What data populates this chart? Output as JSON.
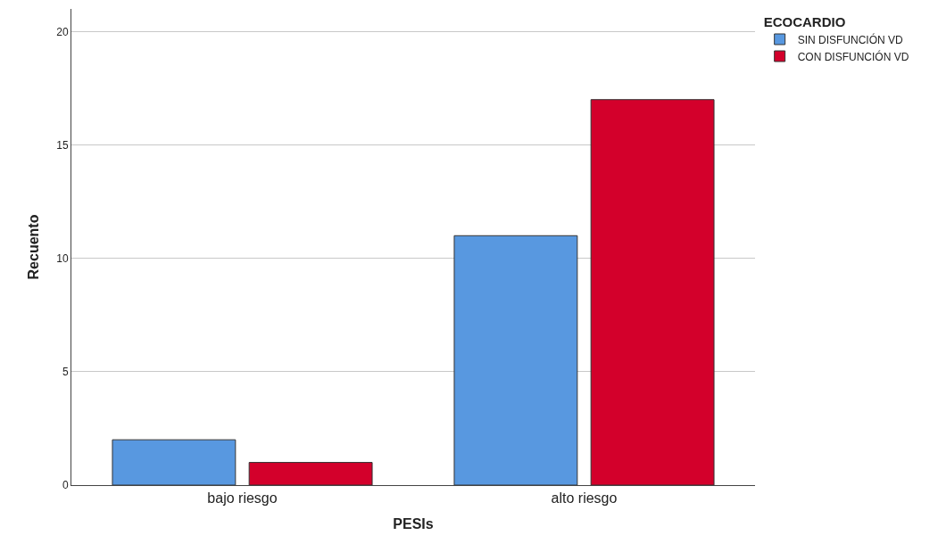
{
  "chart_data": {
    "type": "bar",
    "xlabel": "PESIs",
    "ylabel": "Recuento",
    "legend_title": "ECOCARDIO",
    "categories": [
      "bajo riesgo",
      "alto riesgo"
    ],
    "series": [
      {
        "name": "SIN DISFUNCIÓN VD",
        "color": "#5898e0",
        "values": [
          2,
          11
        ]
      },
      {
        "name": "CON DISFUNCIÓN VD",
        "color": "#d3002b",
        "values": [
          1,
          17
        ]
      }
    ],
    "ylim": [
      0,
      21
    ],
    "yticks": [
      0,
      5,
      10,
      15,
      20
    ],
    "grid": "y",
    "legend": "top right"
  }
}
